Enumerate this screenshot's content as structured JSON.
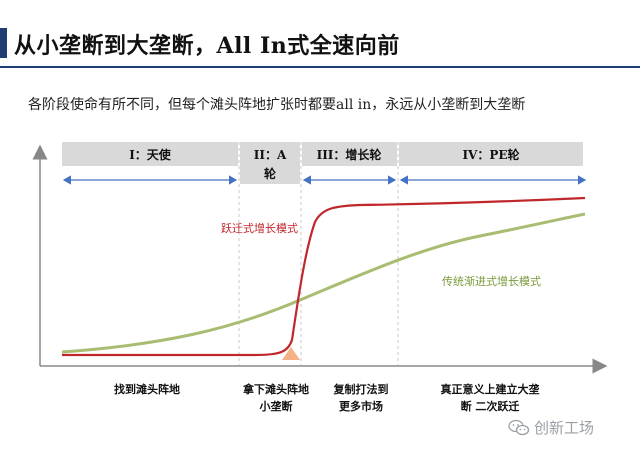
{
  "header": {
    "title": "从小垄断到大垄断，All In式全速向前",
    "accent_color": "#1f3f72"
  },
  "subtitle": "各阶段使命有所不同，但每个滩头阵地扩张时都要all in，永远从小垄断到大垄断",
  "phases": [
    {
      "label": "I：天使"
    },
    {
      "label_line1": "II：A",
      "label_line2": "轮"
    },
    {
      "label": "III：增长轮"
    },
    {
      "label": "IV：PE轮"
    }
  ],
  "curves": {
    "leap": {
      "label": "跃迁式增长模式",
      "color": "#c0272d"
    },
    "gradual": {
      "label": "传统渐进式增长模式",
      "color": "#a8bd72"
    }
  },
  "bottom_labels": [
    {
      "line1": "找到滩头阵地",
      "line2": ""
    },
    {
      "line1": "拿下滩头阵地",
      "line2": "小垄断"
    },
    {
      "line1": "复制打法到",
      "line2": "更多市场"
    },
    {
      "line1": "真正意义上建立大垄",
      "line2": "断 二次跃迁"
    }
  ],
  "watermark": {
    "text": "创新工场",
    "icon": "wechat-icon"
  },
  "colors": {
    "phase_box": "#d9d9d9",
    "arrow": "#4472c4",
    "triangle": "#f4b183"
  }
}
